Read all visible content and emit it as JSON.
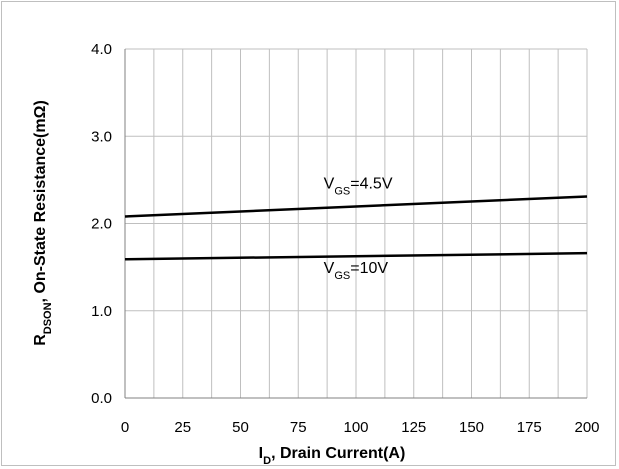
{
  "chart_data": {
    "type": "line",
    "title": "",
    "xlabel_main": "I",
    "xlabel_sub": "D",
    "xlabel_rest": ", Drain Current(A)",
    "ylabel_main": "R",
    "ylabel_sub": "DSON",
    "ylabel_rest": ", On-State Resistance(mΩ)",
    "xlim": [
      0,
      200
    ],
    "ylim": [
      0.0,
      4.0
    ],
    "x_ticks": [
      0,
      25,
      50,
      75,
      100,
      125,
      150,
      175,
      200
    ],
    "x_tick_labels": [
      "0",
      "25",
      "50",
      "75",
      "100",
      "125",
      "150",
      "175",
      "200"
    ],
    "y_ticks": [
      0.0,
      1.0,
      2.0,
      3.0,
      4.0
    ],
    "y_tick_labels": [
      "0.0",
      "1.0",
      "2.0",
      "3.0",
      "4.0"
    ],
    "x_minor_step": 12.5,
    "grid": true,
    "legend": "none",
    "series": [
      {
        "name": "VGS=4.5V",
        "x": [
          0,
          200
        ],
        "y": [
          2.08,
          2.31
        ],
        "color": "#000000"
      },
      {
        "name": "VGS=10V",
        "x": [
          0,
          200
        ],
        "y": [
          1.59,
          1.66
        ],
        "color": "#000000"
      }
    ],
    "annotations": [
      {
        "main": "V",
        "sub": "GS",
        "rest": "=4.5V",
        "x": 86,
        "y": 2.4
      },
      {
        "main": "V",
        "sub": "GS",
        "rest": "=10V",
        "x": 86,
        "y": 1.43
      }
    ]
  }
}
